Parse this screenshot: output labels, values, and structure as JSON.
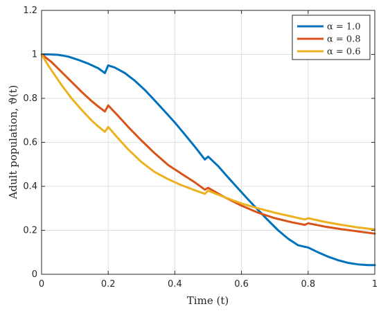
{
  "chart_data": {
    "type": "line",
    "title": "",
    "xlabel": "Time (t)",
    "ylabel": "Adult population, ϑ(t)",
    "xlim": [
      0,
      1
    ],
    "ylim": [
      0,
      1.2
    ],
    "xticks": [
      0,
      0.2,
      0.4,
      0.6,
      0.8,
      1
    ],
    "xtick_labels": [
      "0",
      "0.2",
      "0.4",
      "0.6",
      "0.8",
      "1"
    ],
    "yticks": [
      0,
      0.2,
      0.4,
      0.6,
      0.8,
      1,
      1.2
    ],
    "ytick_labels": [
      "0",
      "0.2",
      "0.4",
      "0.6",
      "0.8",
      "1",
      "1.2"
    ],
    "grid": true,
    "legend_position": "top-right",
    "series": [
      {
        "name": "α = 1.0",
        "color": "#0072BD",
        "x": [
          0,
          0.02,
          0.05,
          0.08,
          0.11,
          0.14,
          0.17,
          0.19,
          0.2,
          0.22,
          0.25,
          0.28,
          0.31,
          0.34,
          0.37,
          0.4,
          0.43,
          0.46,
          0.49,
          0.5,
          0.53,
          0.56,
          0.59,
          0.62,
          0.65,
          0.68,
          0.71,
          0.74,
          0.77,
          0.79,
          0.8,
          0.83,
          0.86,
          0.89,
          0.92,
          0.95,
          0.98,
          1.0
        ],
        "y": [
          1.0,
          1.0,
          0.998,
          0.99,
          0.975,
          0.958,
          0.937,
          0.915,
          0.95,
          0.94,
          0.915,
          0.88,
          0.838,
          0.79,
          0.74,
          0.69,
          0.636,
          0.58,
          0.522,
          0.535,
          0.492,
          0.44,
          0.39,
          0.34,
          0.292,
          0.245,
          0.2,
          0.162,
          0.132,
          0.125,
          0.122,
          0.1,
          0.08,
          0.064,
          0.052,
          0.045,
          0.042,
          0.042
        ]
      },
      {
        "name": "α = 0.8",
        "color": "#D95319",
        "x": [
          0,
          0.03,
          0.06,
          0.09,
          0.12,
          0.15,
          0.17,
          0.19,
          0.2,
          0.23,
          0.26,
          0.3,
          0.34,
          0.38,
          0.42,
          0.46,
          0.49,
          0.5,
          0.55,
          0.6,
          0.65,
          0.7,
          0.75,
          0.79,
          0.8,
          0.85,
          0.9,
          0.95,
          1.0
        ],
        "y": [
          1.0,
          0.965,
          0.92,
          0.875,
          0.83,
          0.788,
          0.763,
          0.74,
          0.768,
          0.72,
          0.67,
          0.608,
          0.55,
          0.497,
          0.457,
          0.418,
          0.385,
          0.393,
          0.35,
          0.312,
          0.28,
          0.255,
          0.237,
          0.225,
          0.232,
          0.217,
          0.205,
          0.195,
          0.185
        ]
      },
      {
        "name": "α = 0.6",
        "color": "#EDB120",
        "x": [
          0,
          0.02,
          0.04,
          0.06,
          0.09,
          0.12,
          0.15,
          0.17,
          0.19,
          0.2,
          0.23,
          0.26,
          0.3,
          0.34,
          0.38,
          0.42,
          0.46,
          0.49,
          0.5,
          0.55,
          0.6,
          0.65,
          0.7,
          0.75,
          0.79,
          0.8,
          0.85,
          0.9,
          0.95,
          1.0
        ],
        "y": [
          1.0,
          0.95,
          0.905,
          0.86,
          0.8,
          0.748,
          0.7,
          0.672,
          0.648,
          0.67,
          0.618,
          0.568,
          0.51,
          0.465,
          0.432,
          0.405,
          0.382,
          0.366,
          0.38,
          0.35,
          0.322,
          0.3,
          0.28,
          0.263,
          0.249,
          0.255,
          0.238,
          0.225,
          0.213,
          0.204
        ]
      }
    ]
  }
}
